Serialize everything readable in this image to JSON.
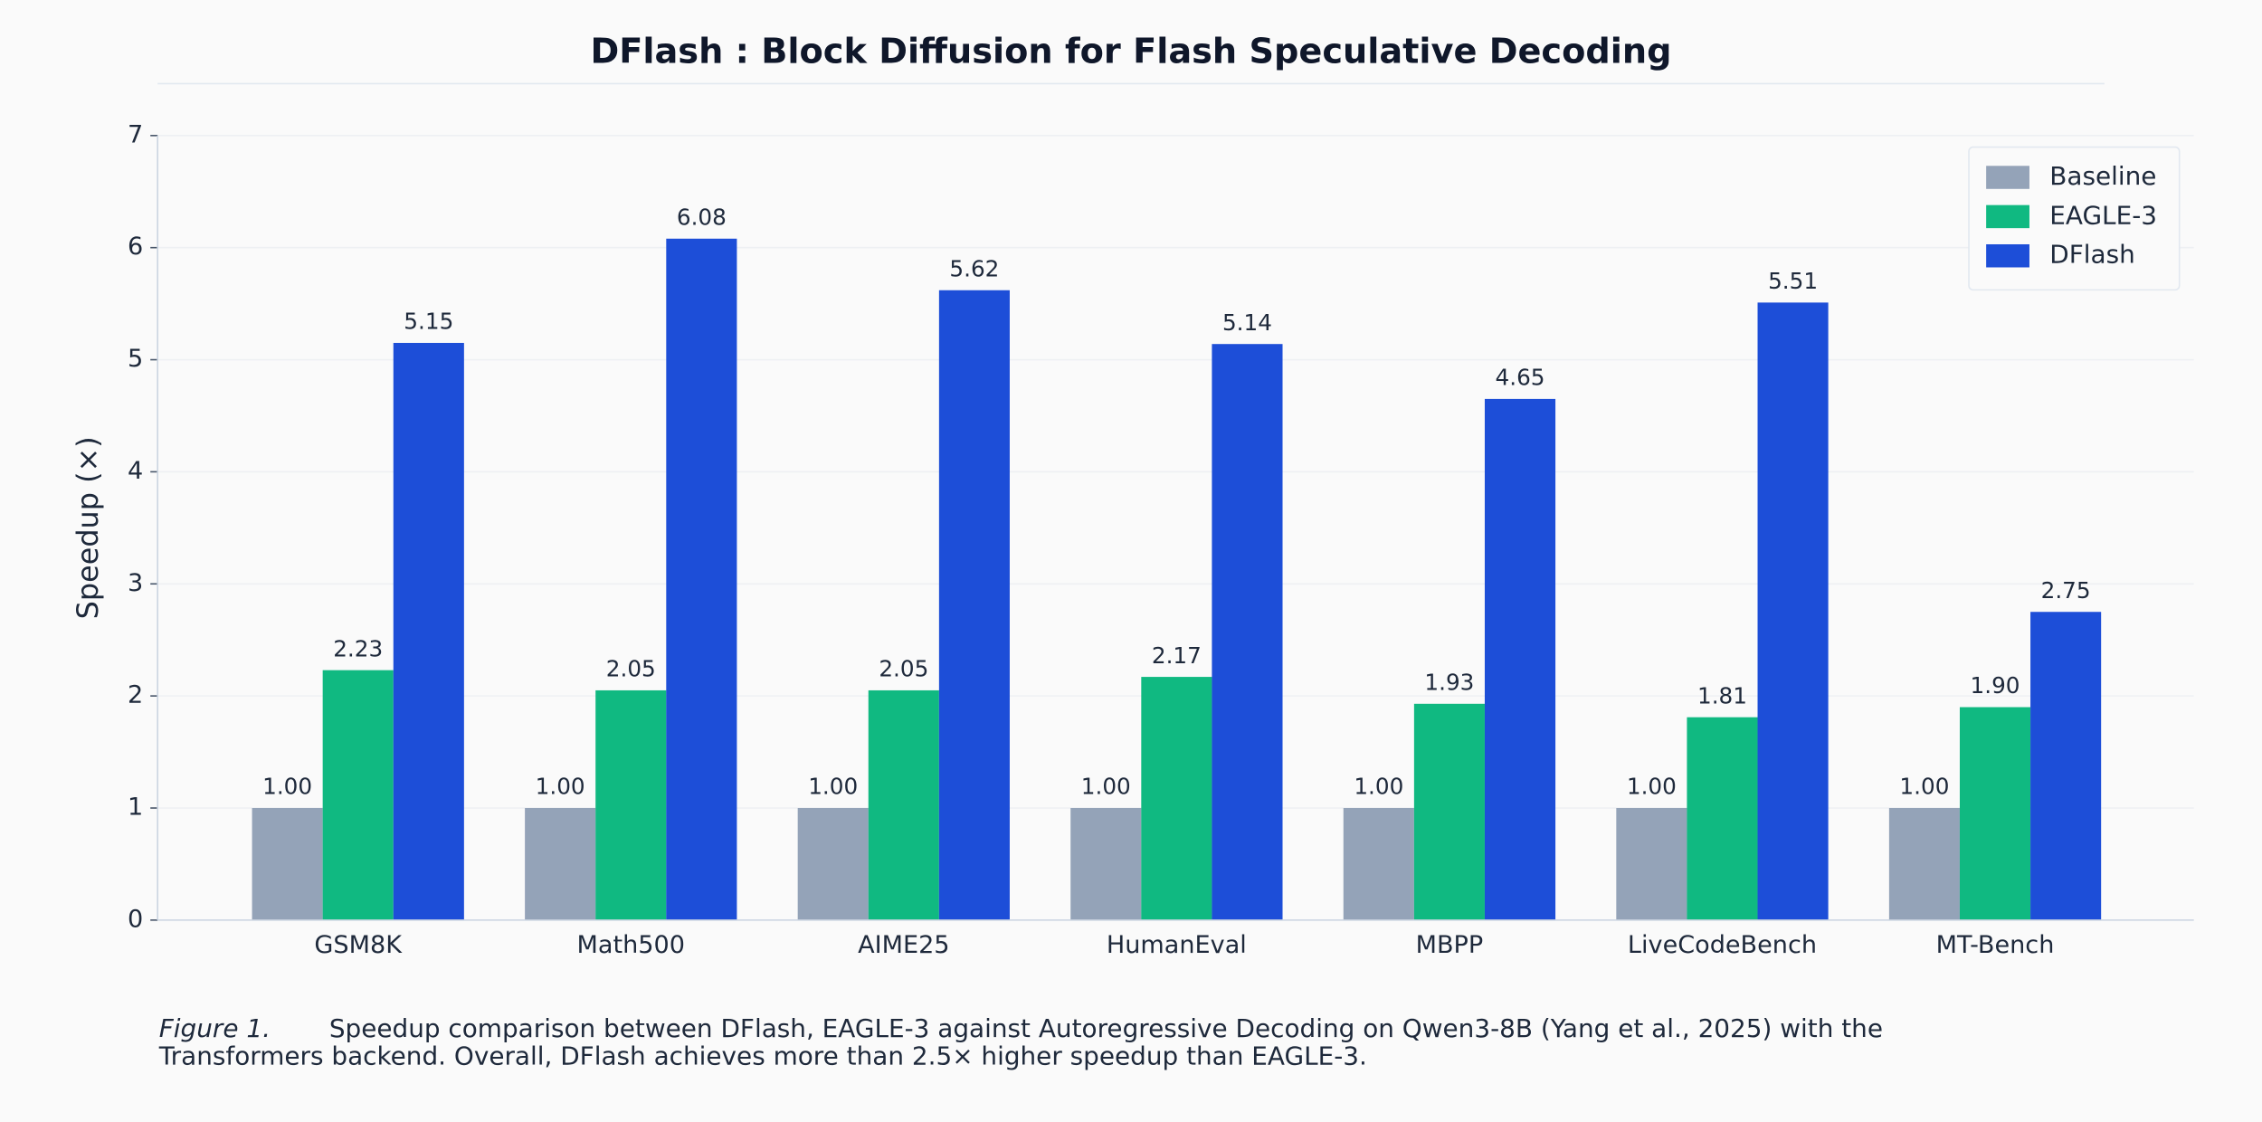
{
  "chart_data": {
    "type": "bar",
    "title": "DFlash : Block Diffusion for Flash Speculative Decoding",
    "ylabel": "Speedup (×)",
    "categories": [
      "GSM8K",
      "Math500",
      "AIME25",
      "HumanEval",
      "MBPP",
      "LiveCodeBench",
      "MT-Bench"
    ],
    "series": [
      {
        "name": "Baseline",
        "color": "#94a3b8",
        "values": [
          1,
          1,
          1,
          1,
          1,
          1,
          1
        ],
        "value_labels": [
          "1.00",
          "1.00",
          "1.00",
          "1.00",
          "1.00",
          "1.00",
          "1.00"
        ]
      },
      {
        "name": "EAGLE-3",
        "color": "#10b981",
        "values": [
          2.23,
          2.05,
          2.05,
          2.17,
          1.93,
          1.81,
          1.9
        ],
        "value_labels": [
          "2.23",
          "2.05",
          "2.05",
          "2.17",
          "1.93",
          "1.81",
          "1.90"
        ]
      },
      {
        "name": "DFlash",
        "color": "#1d4ed8",
        "values": [
          5.15,
          6.08,
          5.62,
          5.14,
          4.65,
          5.51,
          2.75
        ],
        "value_labels": [
          "5.15",
          "6.08",
          "5.62",
          "5.14",
          "4.65",
          "5.51",
          "2.75"
        ]
      }
    ],
    "ylim": [
      0,
      7
    ],
    "yticks": [
      0,
      1,
      2,
      3,
      4,
      5,
      6,
      7
    ],
    "grid": true,
    "legend": "upper right"
  },
  "caption": {
    "label": "Figure 1.",
    "lines": [
      "Speedup comparison between DFlash, EAGLE-3 against Autoregressive Decoding on Qwen3-8B (Yang et al., 2025) with the",
      "Transformers backend. Overall, DFlash achieves more than 2.5× higher speedup than EAGLE-3."
    ]
  }
}
